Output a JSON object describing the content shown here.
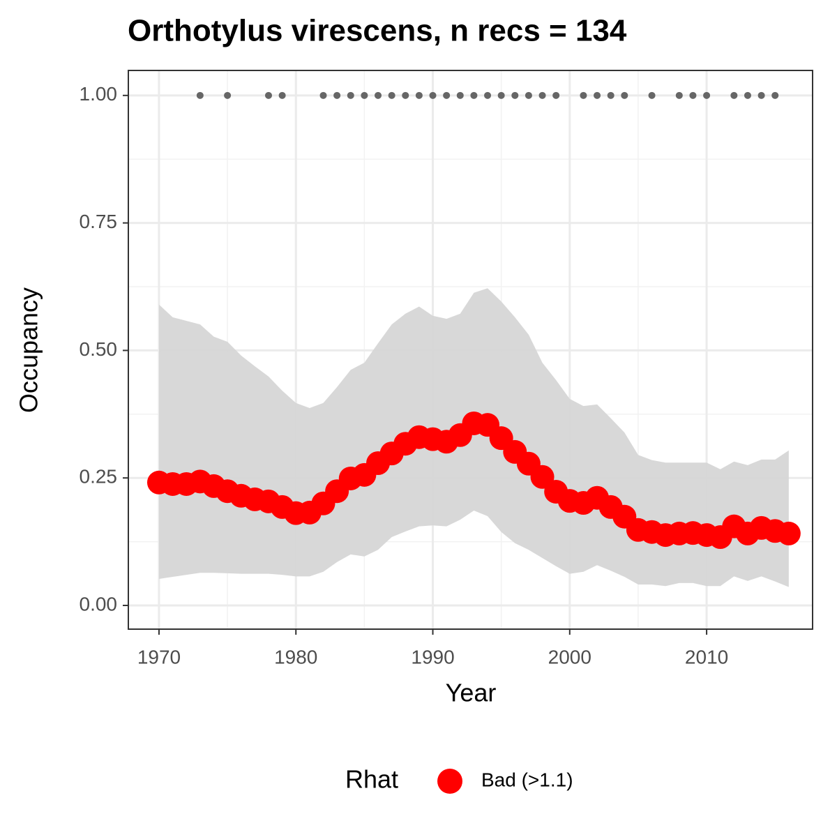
{
  "chart_data": {
    "type": "line",
    "title": "Orthotylus virescens, n recs = 134",
    "x_label": "Year",
    "y_label": "Occupancy",
    "legend_title": "Rhat",
    "x": [
      1970,
      1971,
      1972,
      1973,
      1974,
      1975,
      1976,
      1977,
      1978,
      1979,
      1980,
      1981,
      1982,
      1983,
      1984,
      1985,
      1986,
      1987,
      1988,
      1989,
      1990,
      1991,
      1992,
      1993,
      1994,
      1995,
      1996,
      1997,
      1998,
      1999,
      2000,
      2001,
      2002,
      2003,
      2004,
      2005,
      2006,
      2007,
      2008,
      2009,
      2010,
      2011,
      2012,
      2013,
      2014,
      2015,
      2016
    ],
    "series": [
      {
        "name": "Bad (>1.1)",
        "color": "#ff0000",
        "values": [
          0.241,
          0.238,
          0.238,
          0.243,
          0.234,
          0.224,
          0.215,
          0.208,
          0.204,
          0.193,
          0.181,
          0.182,
          0.2,
          0.224,
          0.249,
          0.256,
          0.279,
          0.298,
          0.317,
          0.33,
          0.326,
          0.321,
          0.334,
          0.357,
          0.354,
          0.328,
          0.301,
          0.278,
          0.252,
          0.223,
          0.205,
          0.201,
          0.211,
          0.193,
          0.174,
          0.148,
          0.144,
          0.138,
          0.141,
          0.142,
          0.138,
          0.134,
          0.155,
          0.141,
          0.152,
          0.146,
          0.141
        ]
      }
    ],
    "band": {
      "color": "#d6d6d6",
      "upper": [
        0.59,
        0.565,
        0.558,
        0.551,
        0.527,
        0.517,
        0.49,
        0.469,
        0.449,
        0.421,
        0.397,
        0.387,
        0.397,
        0.428,
        0.462,
        0.476,
        0.514,
        0.551,
        0.572,
        0.586,
        0.568,
        0.562,
        0.572,
        0.613,
        0.622,
        0.596,
        0.565,
        0.531,
        0.476,
        0.442,
        0.405,
        0.391,
        0.394,
        0.367,
        0.339,
        0.295,
        0.285,
        0.28,
        0.28,
        0.28,
        0.28,
        0.267,
        0.282,
        0.275,
        0.286,
        0.286,
        0.304
      ],
      "lower": [
        0.052,
        0.056,
        0.06,
        0.064,
        0.064,
        0.063,
        0.062,
        0.062,
        0.062,
        0.06,
        0.057,
        0.057,
        0.066,
        0.085,
        0.1,
        0.096,
        0.109,
        0.134,
        0.145,
        0.155,
        0.157,
        0.155,
        0.168,
        0.186,
        0.175,
        0.144,
        0.122,
        0.109,
        0.093,
        0.077,
        0.062,
        0.066,
        0.079,
        0.068,
        0.056,
        0.041,
        0.041,
        0.038,
        0.044,
        0.044,
        0.038,
        0.038,
        0.057,
        0.048,
        0.057,
        0.047,
        0.036
      ]
    },
    "records": {
      "color": "#666666",
      "x": [
        1973,
        1975,
        1978,
        1979,
        1982,
        1983,
        1984,
        1985,
        1986,
        1987,
        1988,
        1989,
        1990,
        1991,
        1992,
        1993,
        1994,
        1995,
        1996,
        1997,
        1998,
        1999,
        2001,
        2002,
        2003,
        2004,
        2006,
        2008,
        2009,
        2010,
        2012,
        2013,
        2014,
        2015
      ],
      "values": [
        1,
        1,
        1,
        1,
        1,
        1,
        1,
        1,
        1,
        1,
        1,
        1,
        1,
        1,
        1,
        1,
        1,
        1,
        1,
        1,
        1,
        1,
        1,
        1,
        1,
        1,
        1,
        1,
        1,
        1,
        1,
        1,
        1,
        1
      ]
    },
    "xlim": [
      1967.76,
      2017.74
    ],
    "ylim": [
      -0.0465,
      1.049
    ],
    "xticks": [
      1970,
      1980,
      1990,
      2000,
      2010
    ],
    "yticks": [
      {
        "value": 0,
        "label": "0.00"
      },
      {
        "value": 0.25,
        "label": "0.25"
      },
      {
        "value": 0.5,
        "label": "0.50"
      },
      {
        "value": 0.75,
        "label": "0.75"
      },
      {
        "value": 1,
        "label": "1.00"
      }
    ],
    "grid": true
  }
}
